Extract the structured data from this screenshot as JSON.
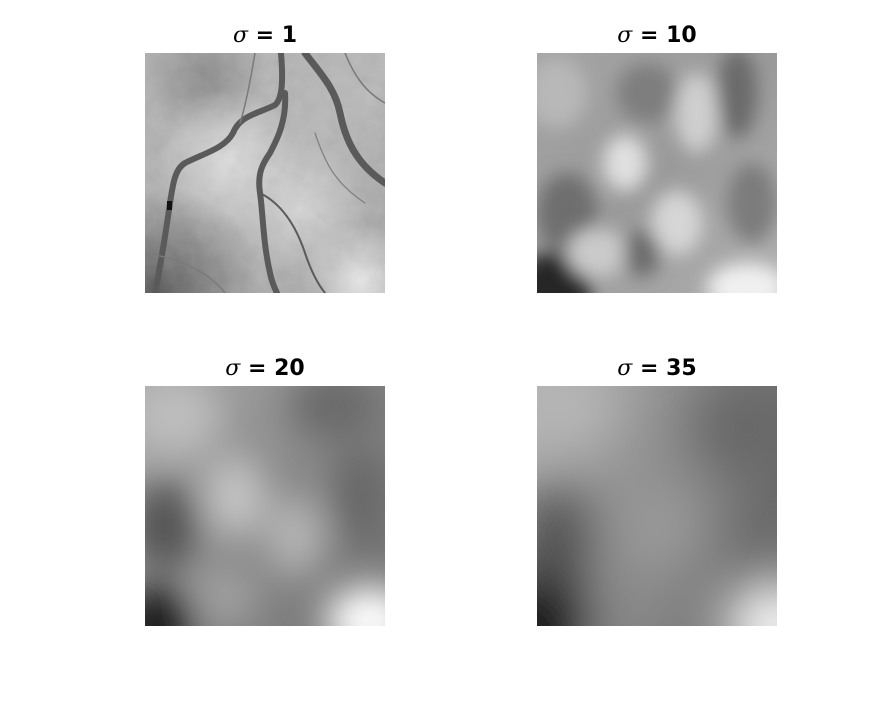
{
  "figure": {
    "panels": [
      {
        "symbol": "σ",
        "label_rest": " = 1",
        "sigma": 1,
        "tone": {
          "tl": "#a8a8a8",
          "tr": "#9a9a9a",
          "bl": "#6a6a6a",
          "br": "#c8c8c8"
        }
      },
      {
        "symbol": "σ",
        "label_rest": " = 10",
        "sigma": 10,
        "tone": {
          "tl": "#9c9c9c",
          "tr": "#9a9a9a",
          "bl": "#505050",
          "br": "#d8d8d8"
        }
      },
      {
        "symbol": "σ",
        "label_rest": " = 20",
        "sigma": 20,
        "tone": {
          "tl": "#b0b0b0",
          "tr": "#6c6c6c",
          "bl": "#2a2a2a",
          "br": "#f4f4f4"
        }
      },
      {
        "symbol": "σ",
        "label_rest": " = 35",
        "sigma": 35,
        "tone": {
          "tl": "#b4b4b4",
          "tr": "#6a6a6a",
          "bl": "#1a1a1a",
          "br": "#f8f8f8"
        }
      }
    ]
  }
}
